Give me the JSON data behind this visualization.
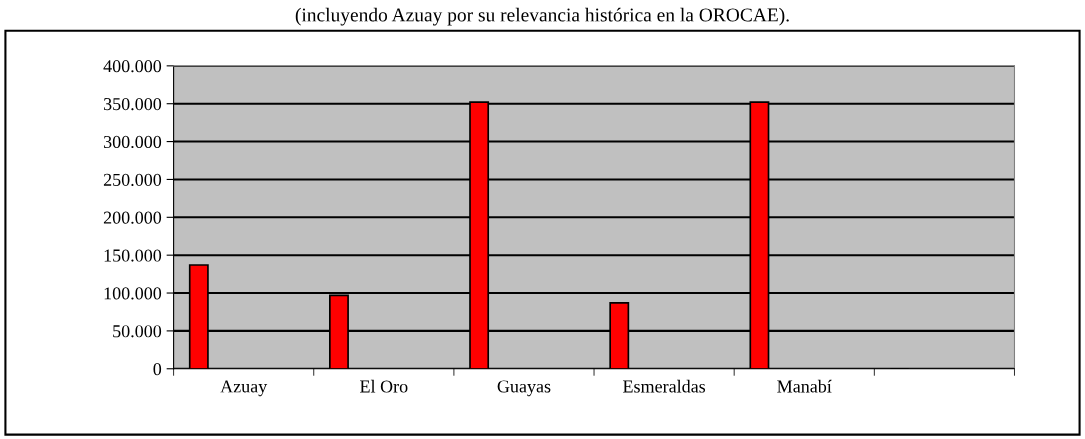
{
  "chart_data": {
    "type": "bar",
    "title": "(incluyendo Azuay por su relevancia histórica en la OROCAE).",
    "categories": [
      "Azuay",
      "El Oro",
      "Guayas",
      "Esmeraldas",
      "Manabí",
      null
    ],
    "values": [
      137000,
      97000,
      352000,
      87000,
      352000,
      null
    ],
    "color": "#ff0000",
    "ylim": [
      0,
      400000
    ],
    "yticks": [
      0,
      {
        "value": 50000,
        "label": "50.000"
      },
      {
        "value": 100000,
        "label": "100.000"
      },
      {
        "value": 150000,
        "label": "150.000"
      },
      {
        "value": 200000,
        "label": "200.000"
      },
      {
        "value": 250000,
        "label": "250.000"
      },
      {
        "value": 300000,
        "label": "300.000"
      },
      {
        "value": 350000,
        "label": "350.000"
      },
      {
        "value": 400000,
        "label": "400.000"
      }
    ],
    "grid": "y"
  }
}
